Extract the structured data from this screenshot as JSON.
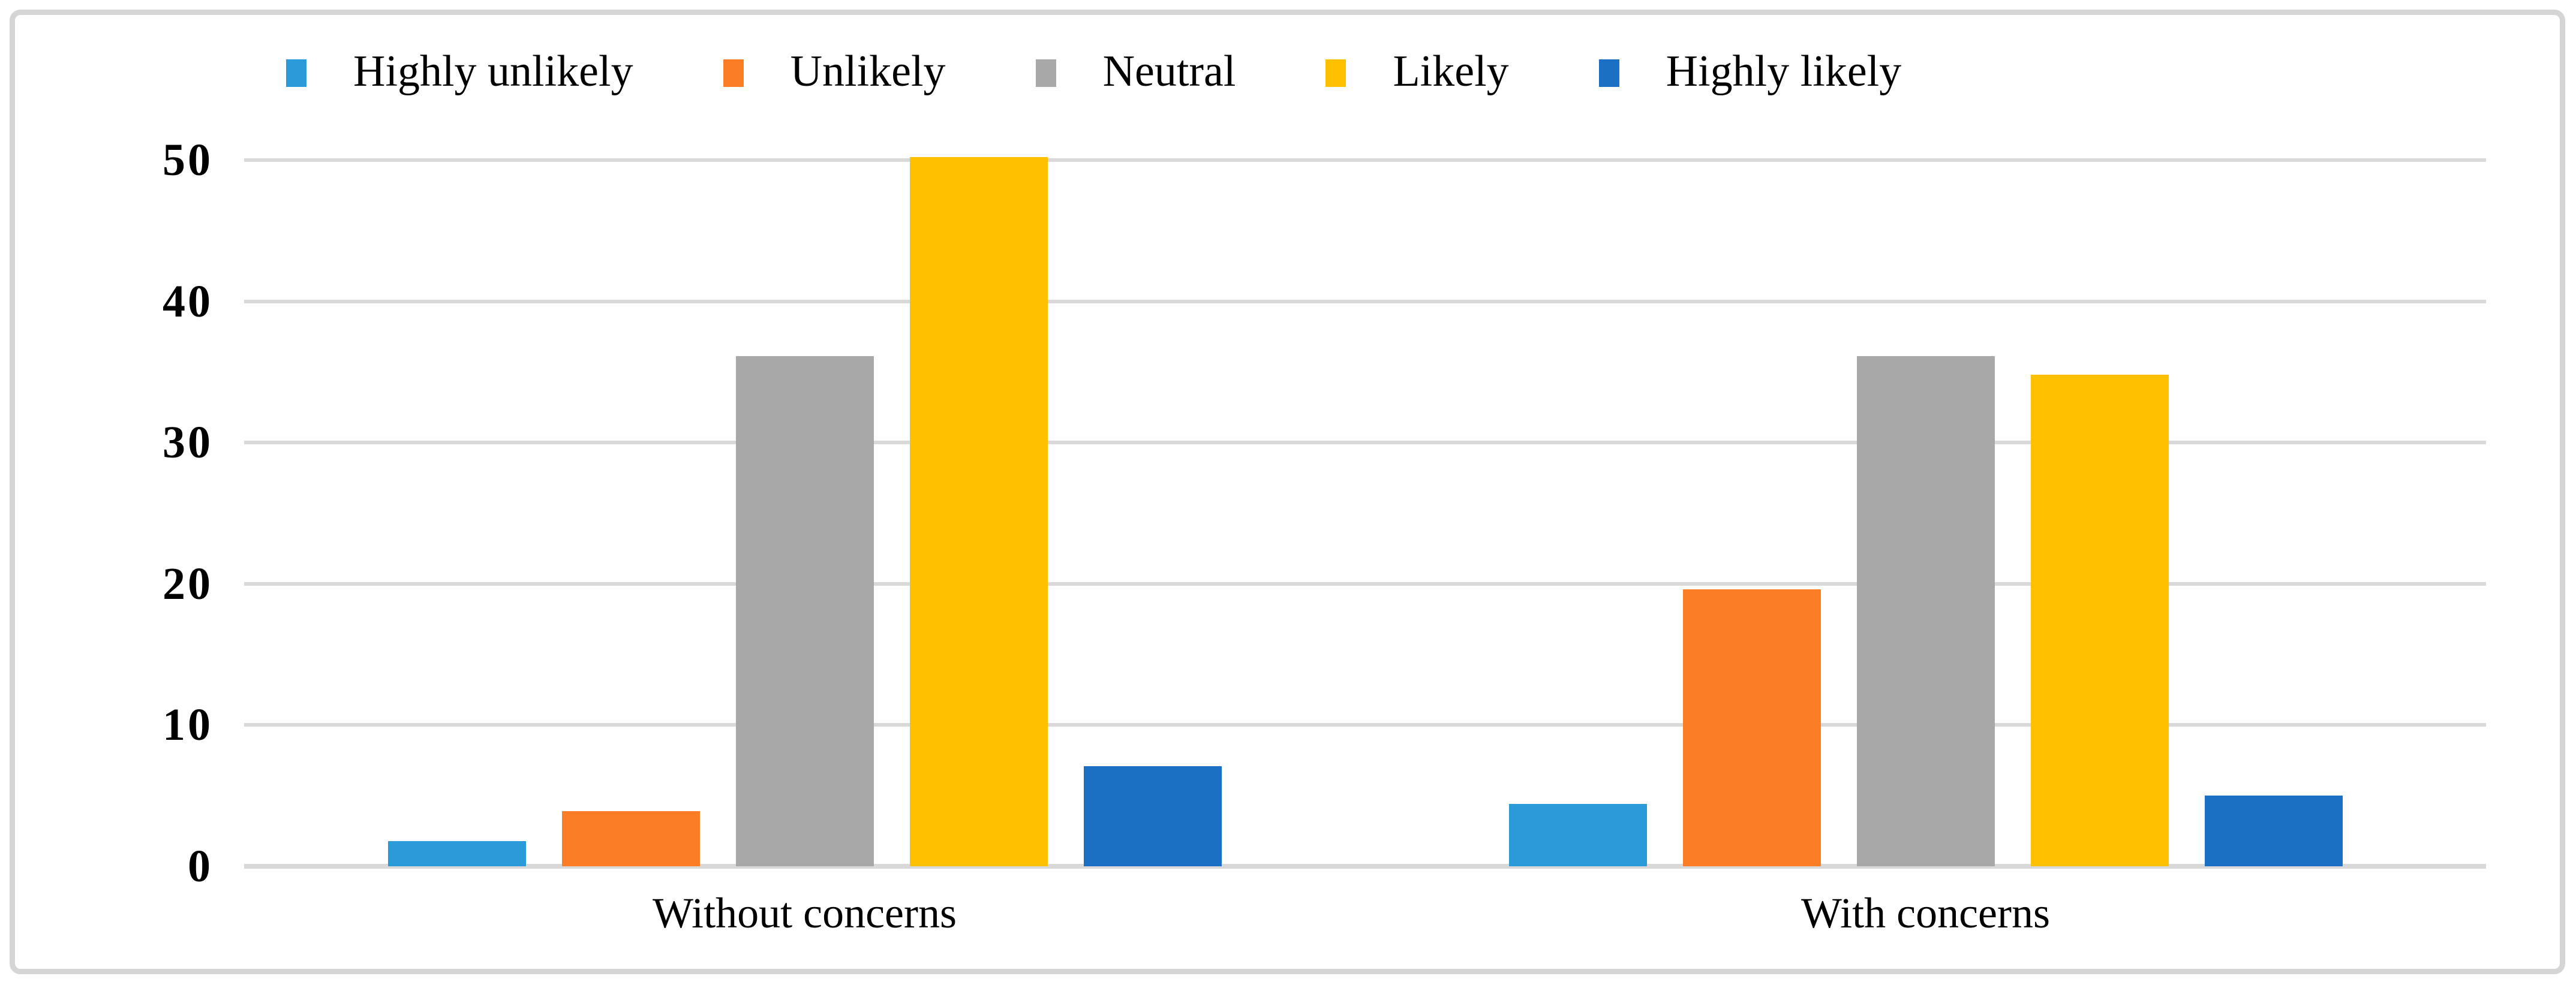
{
  "figure": {
    "kind": "grouped-bar-chart-screenshot",
    "background": "#ffffff"
  },
  "chart_data": {
    "type": "bar",
    "title": "",
    "xlabel": "",
    "ylabel": "",
    "categories": [
      "Without concerns",
      "With concerns"
    ],
    "series": [
      {
        "name": "Highly unlikely",
        "color": "#2b9ad8",
        "values": [
          1.8,
          4.4
        ]
      },
      {
        "name": "Unlikely",
        "color": "#fb7d26",
        "values": [
          3.9,
          19.6
        ]
      },
      {
        "name": "Neutral",
        "color": "#a8a8a8",
        "values": [
          36.1,
          36.1
        ]
      },
      {
        "name": "Likely",
        "color": "#ffc000",
        "values": [
          50.2,
          34.8
        ]
      },
      {
        "name": "Highly likely",
        "color": "#1b6fc4",
        "values": [
          7.1,
          5.0
        ]
      }
    ],
    "ylim": [
      0,
      50
    ],
    "yticks": [
      0,
      10,
      20,
      30,
      40,
      50
    ],
    "grid": true,
    "gridline_color": "#d9d9d9",
    "legend_position": "top",
    "frame_border_color": "#d5d5d5",
    "text_color": "#000000"
  }
}
